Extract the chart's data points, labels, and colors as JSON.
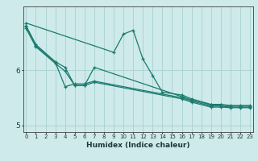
{
  "xlabel": "Humidex (Indice chaleur)",
  "bg_color": "#ceeaea",
  "line_color": "#1a7a6e",
  "grid_color": "#aed4d4",
  "lines": [
    {
      "x": [
        0,
        1,
        3,
        4,
        5,
        6,
        7,
        16,
        17,
        19,
        20,
        21,
        22,
        23
      ],
      "y": [
        6.75,
        6.42,
        6.12,
        5.98,
        5.72,
        5.72,
        5.78,
        5.48,
        5.42,
        5.33,
        5.33,
        5.32,
        5.32,
        5.32
      ]
    },
    {
      "x": [
        0,
        1,
        3,
        4,
        5,
        6,
        7,
        16,
        17,
        19,
        20,
        21,
        22,
        23
      ],
      "y": [
        6.78,
        6.44,
        6.14,
        5.7,
        5.75,
        5.75,
        5.8,
        5.5,
        5.44,
        5.35,
        5.35,
        5.33,
        5.33,
        5.33
      ]
    },
    {
      "x": [
        0,
        1,
        3,
        4,
        5,
        6,
        7,
        16,
        17,
        19,
        20,
        21,
        22,
        23
      ],
      "y": [
        6.8,
        6.46,
        6.15,
        6.05,
        5.72,
        5.72,
        6.05,
        5.52,
        5.46,
        5.37,
        5.37,
        5.35,
        5.35,
        5.35
      ]
    },
    {
      "x": [
        0,
        9,
        10,
        11,
        12,
        13,
        14,
        16,
        17,
        19,
        20,
        21,
        22,
        23
      ],
      "y": [
        6.85,
        6.32,
        6.65,
        6.72,
        6.2,
        5.9,
        5.6,
        5.55,
        5.48,
        5.38,
        5.38,
        5.36,
        5.36,
        5.36
      ]
    }
  ],
  "xlim": [
    -0.3,
    23.3
  ],
  "ylim": [
    4.88,
    7.15
  ],
  "yticks": [
    5,
    6
  ],
  "xticks": [
    0,
    1,
    2,
    3,
    4,
    5,
    6,
    7,
    8,
    9,
    10,
    11,
    12,
    13,
    14,
    15,
    16,
    17,
    18,
    19,
    20,
    21,
    22,
    23
  ],
  "figsize": [
    3.2,
    2.0
  ],
  "dpi": 100
}
